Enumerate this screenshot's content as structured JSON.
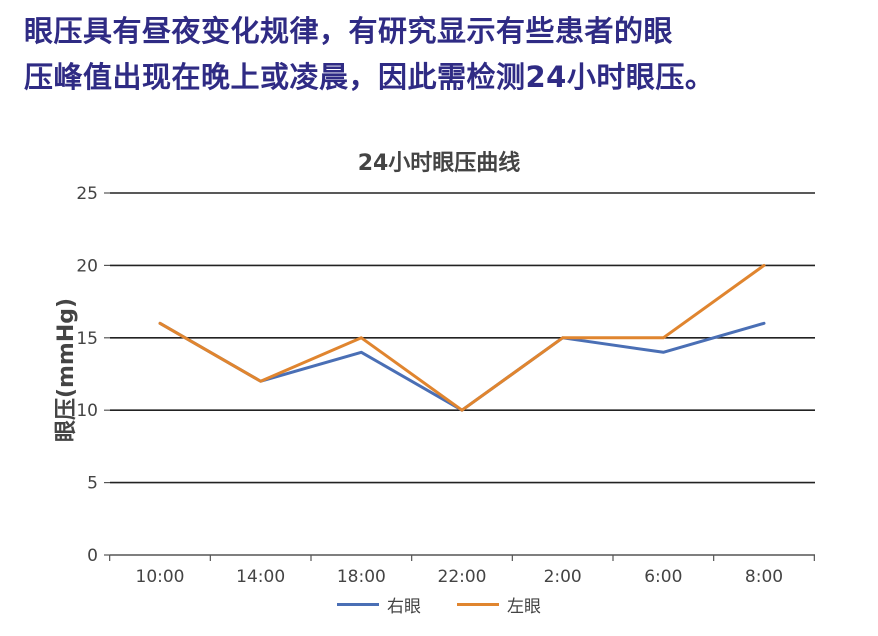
{
  "headline": {
    "line1": "眼压具有昼夜变化规律，有研究显示有些患者的眼",
    "line2": "压峰值出现在晚上或凌晨，因此需检测24小时眼压。"
  },
  "chart_data": {
    "type": "line",
    "title": "24小时眼压曲线",
    "xlabel": "",
    "ylabel": "眼压(mmHg)",
    "categories": [
      "10:00",
      "14:00",
      "18:00",
      "22:00",
      "2:00",
      "6:00",
      "8:00"
    ],
    "ylim": [
      0,
      25
    ],
    "yticks": [
      0,
      5,
      10,
      15,
      20,
      25
    ],
    "grid": true,
    "legend_position": "bottom",
    "series": [
      {
        "name": "右眼",
        "color": "#4a6fb5",
        "values": [
          16,
          12,
          14,
          10,
          15,
          14,
          16
        ]
      },
      {
        "name": "左眼",
        "color": "#e0852f",
        "values": [
          16,
          12,
          15,
          10,
          15,
          15,
          20
        ]
      }
    ]
  }
}
